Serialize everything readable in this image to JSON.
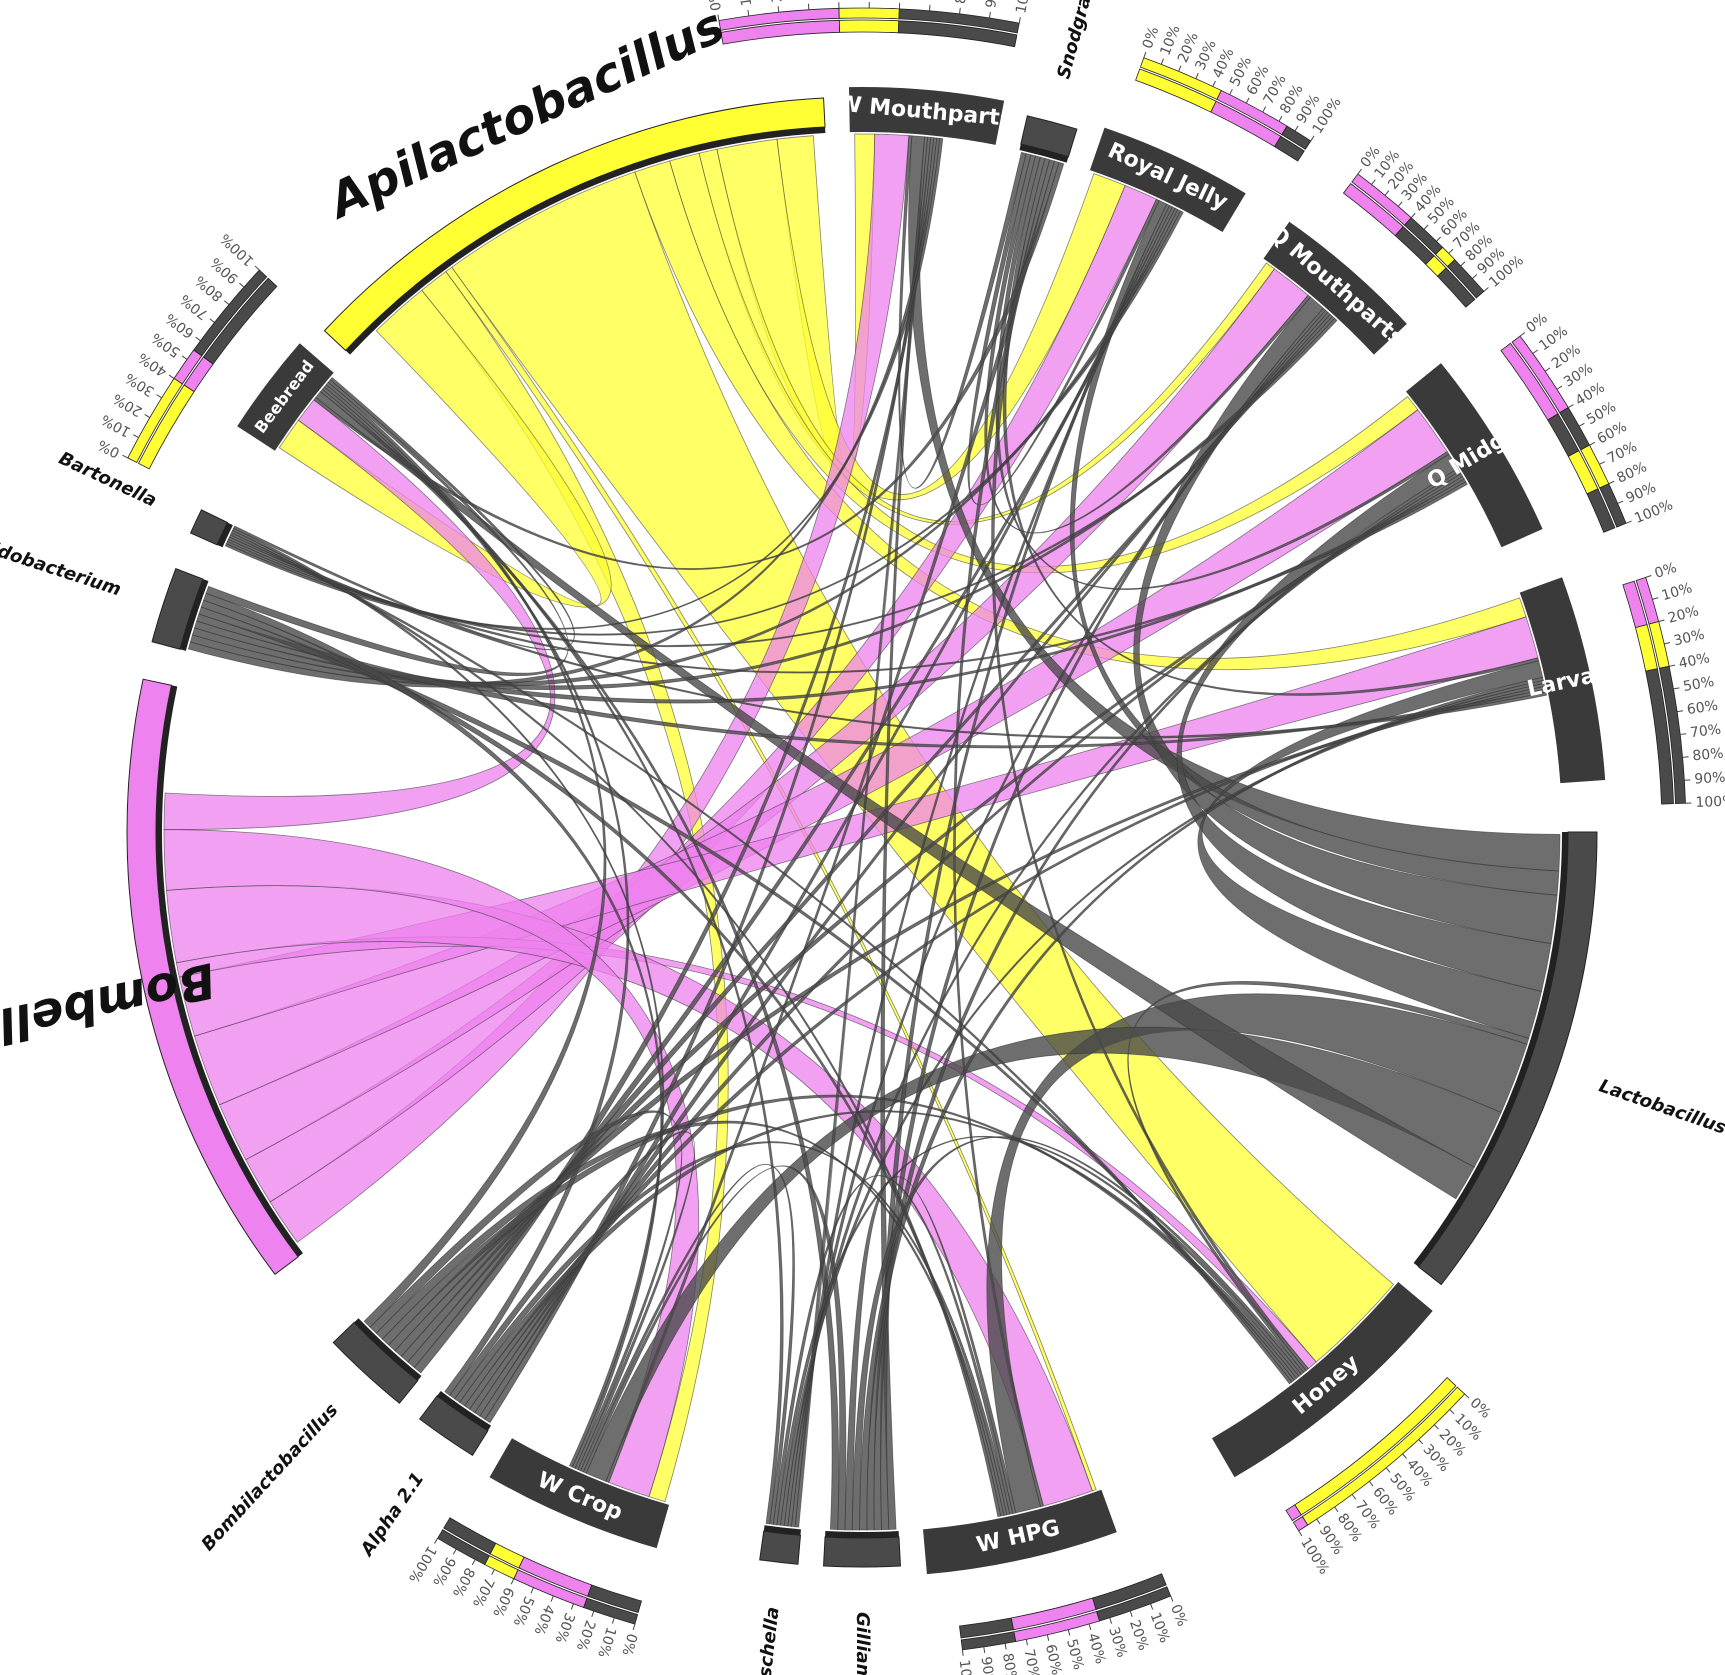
{
  "chart_data": {
    "type": "chord",
    "title": "",
    "colors": {
      "Bombella": "#ee82ee",
      "Apilactobacillus": "#ffff33",
      "other": "#4a4a4a",
      "sample_arc": "#3a3a3a",
      "sample_text": "#ffffff"
    },
    "tick_labels": [
      "0%",
      "10%",
      "20%",
      "30%",
      "40%",
      "50%",
      "60%",
      "70%",
      "80%",
      "90%",
      "100%"
    ],
    "samples": [
      {
        "name": "W Mouthparts",
        "composition": {
          "Bombella": 40,
          "Apilactobacillus": 20,
          "other": 40
        }
      },
      {
        "name": "Royal Jelly",
        "composition": {
          "Apilactobacillus": 45,
          "Bombella": 40,
          "other": 15
        }
      },
      {
        "name": "Q Mouthparts",
        "composition": {
          "Bombella": 40,
          "other": 25,
          "Apilactobacillus": 10,
          "rest": 25
        }
      },
      {
        "name": "Q Midgut",
        "composition": {
          "Bombella": 40,
          "other": 20,
          "Apilactobacillus": 20,
          "rest": 20
        }
      },
      {
        "name": "Larvae",
        "composition": {
          "Bombella": 20,
          "Apilactobacillus": 20,
          "other": 60
        }
      },
      {
        "name": "Honey",
        "composition": {
          "Apilactobacillus": 95,
          "Bombella": 5
        }
      },
      {
        "name": "W HPG",
        "composition": {
          "other": 35,
          "Bombella": 40,
          "rest": 25
        }
      },
      {
        "name": "W Crop",
        "composition": {
          "other": 25,
          "Bombella": 35,
          "Apilactobacillus": 15,
          "rest": 25
        }
      },
      {
        "name": "Beebread",
        "composition": {
          "Apilactobacillus": 40,
          "Bombella": 15,
          "other": 45
        }
      }
    ],
    "taxa": [
      {
        "name": "Apilactobacillus"
      },
      {
        "name": "Snodgrassella"
      },
      {
        "name": "Lactobacillus"
      },
      {
        "name": "Gilliamella"
      },
      {
        "name": "Frischella"
      },
      {
        "name": "Alpha 2.1"
      },
      {
        "name": "Bombilactobacillus"
      },
      {
        "name": "Bombella"
      },
      {
        "name": "Bifidobacterium"
      },
      {
        "name": "Bartonella"
      }
    ]
  }
}
